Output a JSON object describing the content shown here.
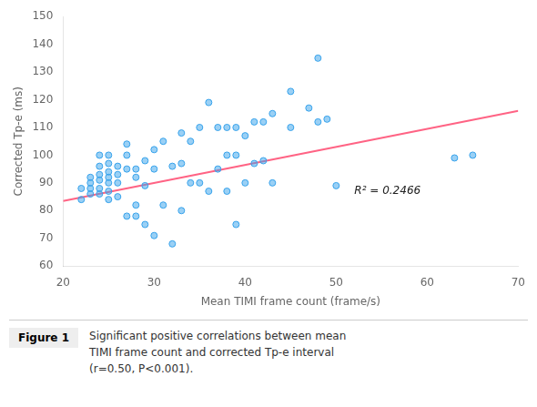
{
  "chart_data": {
    "type": "scatter",
    "series": [
      {
        "type": "scatter",
        "x": [
          22,
          22,
          23,
          23,
          23,
          23,
          24,
          24,
          24,
          24,
          24,
          24,
          25,
          25,
          25,
          25,
          25,
          25,
          25,
          26,
          26,
          26,
          26,
          27,
          27,
          27,
          27,
          28,
          28,
          28,
          28,
          29,
          29,
          29,
          30,
          30,
          30,
          31,
          31,
          32,
          32,
          33,
          33,
          33,
          34,
          34,
          35,
          35,
          36,
          36,
          37,
          37,
          38,
          38,
          38,
          39,
          39,
          39,
          40,
          40,
          41,
          41,
          42,
          42,
          43,
          43,
          45,
          45,
          47,
          48,
          48,
          49,
          50,
          63,
          65
        ],
        "values": [
          88,
          84,
          92,
          90,
          88,
          86,
          100,
          96,
          93,
          91,
          88,
          86,
          100,
          97,
          94,
          92,
          90,
          87,
          84,
          96,
          93,
          90,
          85,
          104,
          100,
          95,
          78,
          95,
          92,
          82,
          78,
          98,
          89,
          75,
          102,
          95,
          71,
          105,
          82,
          96,
          68,
          108,
          97,
          80,
          105,
          90,
          110,
          90,
          119,
          87,
          110,
          95,
          110,
          100,
          87,
          110,
          100,
          75,
          107,
          90,
          112,
          97,
          112,
          98,
          115,
          90,
          123,
          110,
          117,
          135,
          112,
          113,
          89,
          99,
          100
        ]
      },
      {
        "type": "line",
        "x": [
          20,
          70
        ],
        "values": [
          83.5,
          116.0
        ]
      }
    ],
    "x_label": "Mean TIMI frame count (frame/s)",
    "y_label": "Corrected Tp-e (ms)",
    "xlim": [
      20,
      70
    ],
    "ylim": [
      60,
      150
    ],
    "xticks": [
      20,
      30,
      40,
      50,
      60,
      70
    ],
    "yticks": [
      60,
      70,
      80,
      90,
      100,
      110,
      120,
      130,
      140,
      150
    ],
    "annotations": [
      {
        "text": "R² = 0.2466",
        "x": 52,
        "y": 87
      }
    ],
    "figure_label": "Figure 1",
    "caption": "Significant positive correlations between mean\nTIMI frame count and corrected Tp-e interval\n(r=0.50, P<0.001).",
    "grid": false
  }
}
